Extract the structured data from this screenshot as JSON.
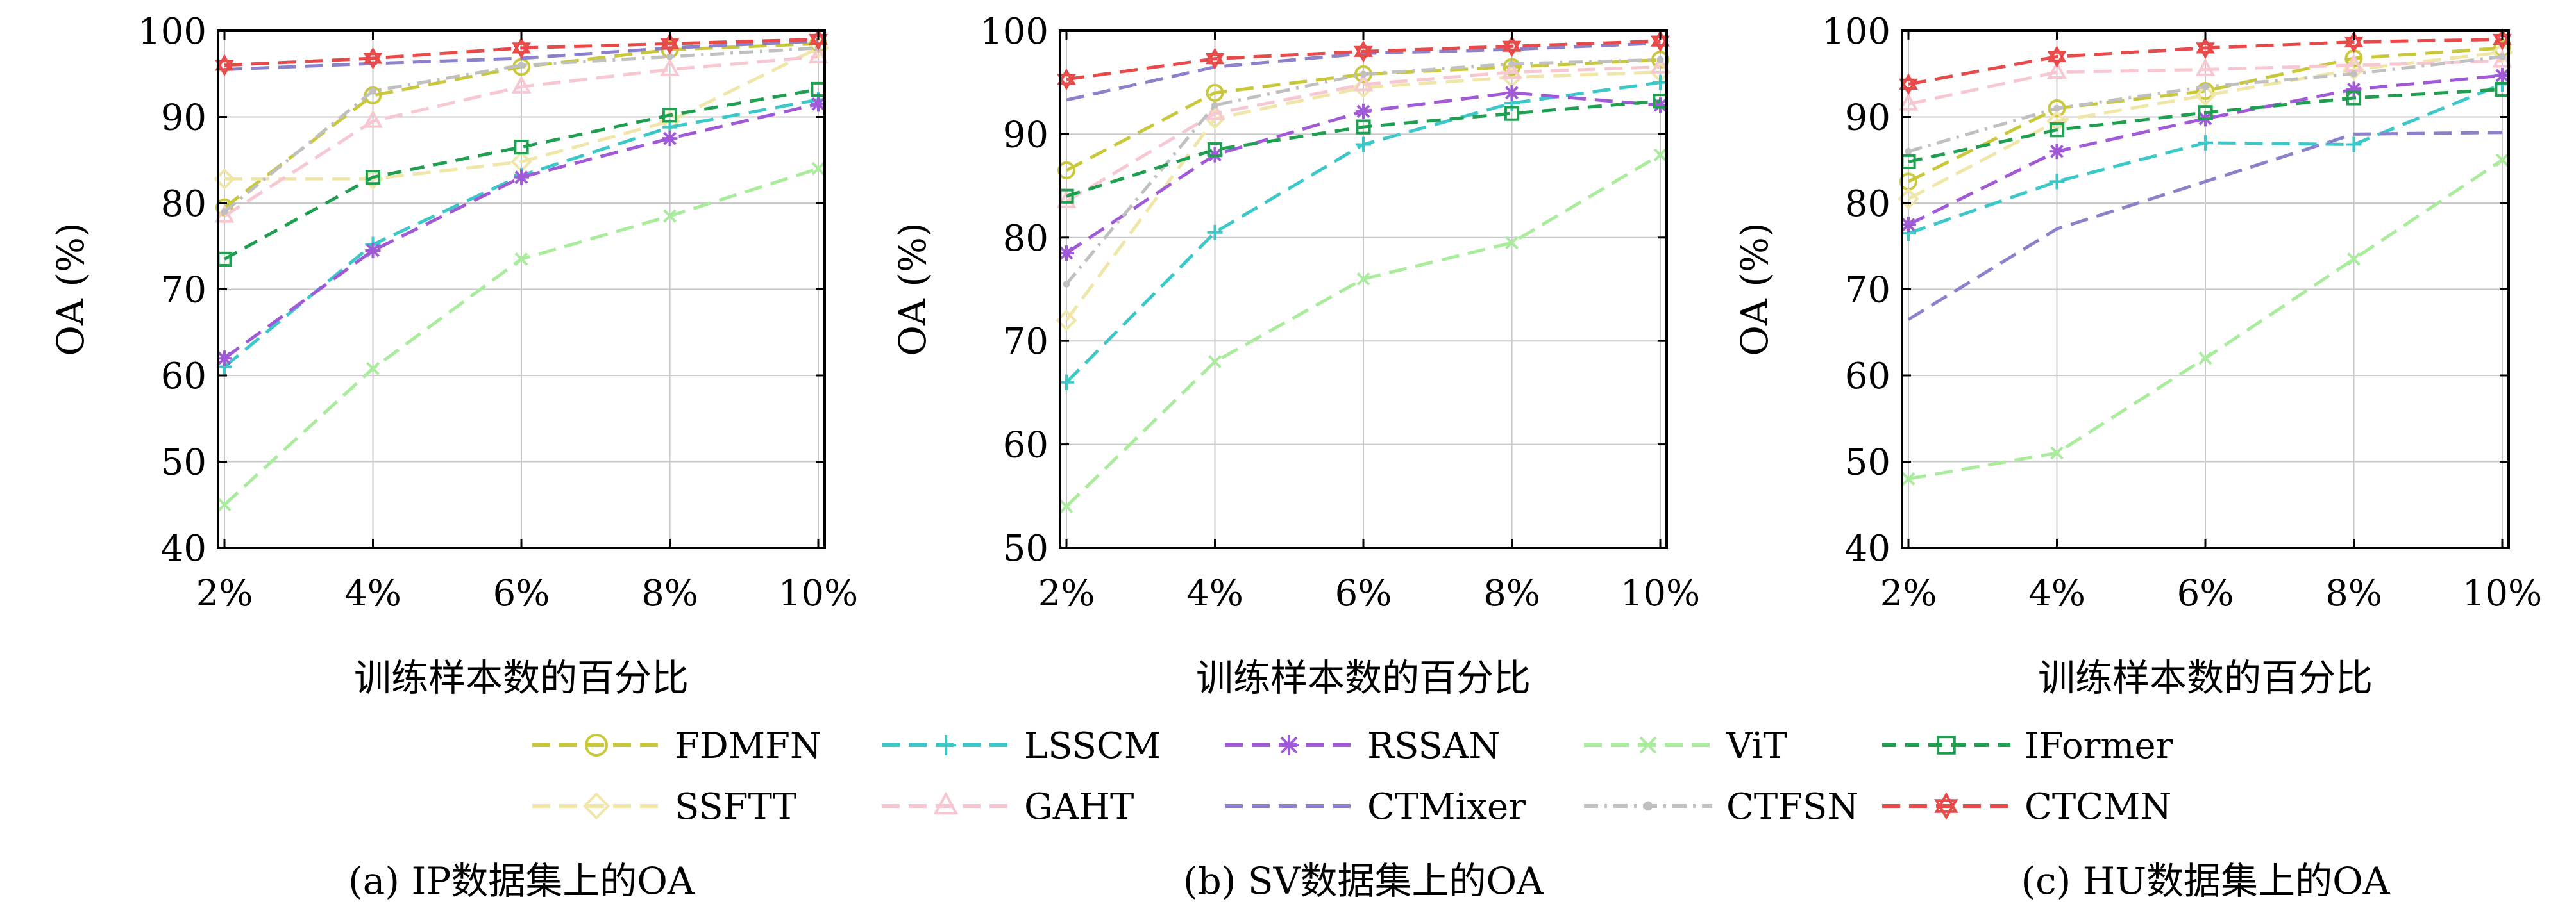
{
  "styles": {
    "FDMFN": {
      "color": "#c8c83a",
      "dash": "28,14",
      "marker": "circle"
    },
    "SSFTT": {
      "color": "#f0e6a8",
      "dash": "28,14",
      "marker": "diamond"
    },
    "LSSCM": {
      "color": "#3cc8c8",
      "dash": "28,14",
      "marker": "plus"
    },
    "GAHT": {
      "color": "#f8c8d2",
      "dash": "28,14",
      "marker": "triangle"
    },
    "RSSAN": {
      "color": "#a05ad8",
      "dash": "28,14",
      "marker": "star"
    },
    "CTMixer": {
      "color": "#8c82cc",
      "dash": "28,14",
      "marker": "none"
    },
    "ViT": {
      "color": "#a8ec9c",
      "dash": "28,14",
      "marker": "x"
    },
    "CTFSN": {
      "color": "#c0c0c0",
      "dash": "22,10,4,10",
      "marker": "dot"
    },
    "IFormer": {
      "color": "#1ea050",
      "dash": "22,14",
      "marker": "square"
    },
    "CTCMN": {
      "color": "#e84a4a",
      "dash": "28,14",
      "marker": "hexstar"
    }
  },
  "legend": {
    "rows": [
      [
        "FDMFN",
        "LSSCM",
        "RSSAN",
        "ViT",
        "IFormer"
      ],
      [
        "SSFTT",
        "GAHT",
        "CTMixer",
        "CTFSN",
        "CTCMN"
      ]
    ]
  },
  "chart_data": [
    {
      "type": "line",
      "caption": "(a) IP数据集上的OA",
      "xlabel": "训练样本数的百分比",
      "ylabel": "OA (%)",
      "categories": [
        "2%",
        "4%",
        "6%",
        "8%",
        "10%"
      ],
      "ylim": [
        40,
        100
      ],
      "yticks": [
        40,
        50,
        60,
        70,
        80,
        90,
        100
      ],
      "grid": true,
      "series": [
        {
          "name": "FDMFN",
          "values": [
            79.5,
            92.5,
            95.8,
            97.8,
            98.5
          ]
        },
        {
          "name": "SSFTT",
          "values": [
            82.8,
            82.8,
            84.8,
            89.5,
            98.0
          ]
        },
        {
          "name": "LSSCM",
          "values": [
            61.0,
            75.2,
            83.2,
            88.8,
            92.0
          ]
        },
        {
          "name": "GAHT",
          "values": [
            78.5,
            89.5,
            93.5,
            95.5,
            97.0
          ]
        },
        {
          "name": "RSSAN",
          "values": [
            62.0,
            74.5,
            83.0,
            87.5,
            91.5
          ]
        },
        {
          "name": "CTMixer",
          "values": [
            95.5,
            96.2,
            96.8,
            98.0,
            98.8
          ]
        },
        {
          "name": "ViT",
          "values": [
            45.0,
            60.8,
            73.5,
            78.5,
            84.0
          ]
        },
        {
          "name": "CTFSN",
          "values": [
            79.0,
            93.0,
            96.0,
            97.0,
            98.0
          ]
        },
        {
          "name": "IFormer",
          "values": [
            73.5,
            83.0,
            86.5,
            90.2,
            93.2
          ]
        },
        {
          "name": "CTCMN",
          "values": [
            96.0,
            96.8,
            98.0,
            98.5,
            99.0
          ]
        }
      ]
    },
    {
      "type": "line",
      "caption": "(b) SV数据集上的OA",
      "xlabel": "训练样本数的百分比",
      "ylabel": "OA (%)",
      "categories": [
        "2%",
        "4%",
        "6%",
        "8%",
        "10%"
      ],
      "ylim": [
        50,
        100
      ],
      "yticks": [
        50,
        60,
        70,
        80,
        90,
        100
      ],
      "grid": true,
      "series": [
        {
          "name": "FDMFN",
          "values": [
            86.5,
            94.0,
            95.8,
            96.5,
            97.2
          ]
        },
        {
          "name": "SSFTT",
          "values": [
            72.0,
            91.5,
            94.5,
            95.5,
            96.0
          ]
        },
        {
          "name": "LSSCM",
          "values": [
            66.0,
            80.5,
            89.0,
            93.0,
            95.0
          ]
        },
        {
          "name": "GAHT",
          "values": [
            83.5,
            92.0,
            94.8,
            96.0,
            96.5
          ]
        },
        {
          "name": "RSSAN",
          "values": [
            78.5,
            88.0,
            92.2,
            94.0,
            92.8
          ]
        },
        {
          "name": "CTMixer",
          "values": [
            93.3,
            96.5,
            97.8,
            98.2,
            98.8
          ]
        },
        {
          "name": "ViT",
          "values": [
            54.0,
            68.0,
            76.0,
            79.5,
            88.0
          ]
        },
        {
          "name": "CTFSN",
          "values": [
            75.5,
            92.8,
            95.8,
            96.8,
            97.2
          ]
        },
        {
          "name": "IFormer",
          "values": [
            84.0,
            88.5,
            90.7,
            92.0,
            93.2
          ]
        },
        {
          "name": "CTCMN",
          "values": [
            95.3,
            97.3,
            98.0,
            98.5,
            99.0
          ]
        }
      ]
    },
    {
      "type": "line",
      "caption": "(c) HU数据集上的OA",
      "xlabel": "训练样本数的百分比",
      "ylabel": "OA (%)",
      "categories": [
        "2%",
        "4%",
        "6%",
        "8%",
        "10%"
      ],
      "ylim": [
        40,
        100
      ],
      "yticks": [
        40,
        50,
        60,
        70,
        80,
        90,
        100
      ],
      "grid": true,
      "series": [
        {
          "name": "FDMFN",
          "values": [
            82.5,
            91.0,
            93.0,
            96.8,
            98.0
          ]
        },
        {
          "name": "SSFTT",
          "values": [
            80.5,
            89.5,
            92.5,
            95.5,
            97.5
          ]
        },
        {
          "name": "LSSCM",
          "values": [
            76.5,
            82.5,
            87.0,
            86.8,
            93.8
          ]
        },
        {
          "name": "GAHT",
          "values": [
            91.5,
            95.2,
            95.5,
            96.0,
            96.5
          ]
        },
        {
          "name": "RSSAN",
          "values": [
            77.5,
            86.0,
            89.8,
            93.2,
            94.8
          ]
        },
        {
          "name": "CTMixer",
          "values": [
            66.5,
            77.0,
            82.5,
            88.0,
            88.2
          ]
        },
        {
          "name": "ViT",
          "values": [
            48.0,
            51.0,
            62.0,
            73.5,
            85.0
          ]
        },
        {
          "name": "CTFSN",
          "values": [
            86.0,
            91.0,
            93.5,
            95.0,
            97.0
          ]
        },
        {
          "name": "IFormer",
          "values": [
            84.8,
            88.5,
            90.5,
            92.2,
            93.2
          ]
        },
        {
          "name": "CTCMN",
          "values": [
            93.8,
            97.0,
            98.0,
            98.7,
            99.0
          ]
        }
      ]
    }
  ]
}
